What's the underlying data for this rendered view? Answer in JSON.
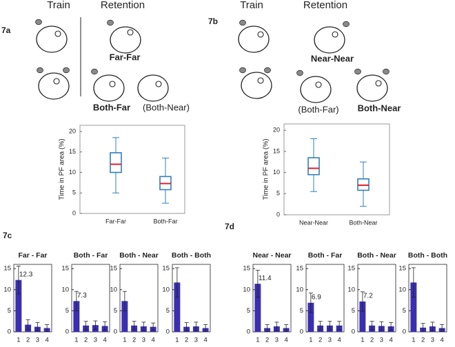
{
  "panels": [
    {
      "label": "7a",
      "train": "Train",
      "retention": "Retention",
      "conditions": [
        "Far-Far",
        "Both-Far",
        "(Both-Near)"
      ]
    },
    {
      "label": "7b",
      "train": "Train",
      "retention": "Retention",
      "conditions": [
        "Near-Near",
        "(Both-Far)",
        "Both-Near"
      ]
    }
  ],
  "bar_panel_labels": [
    "7c",
    "7d"
  ],
  "chart_data": [
    {
      "type": "box",
      "ylabel": "Time in PF area (%)",
      "categories": [
        "Far-Far",
        "Both-Far"
      ],
      "boxes": [
        {
          "whislo": 5,
          "q1": 10,
          "med": 12,
          "q3": 14.8,
          "whishi": 18.5
        },
        {
          "whislo": 2.5,
          "q1": 5.8,
          "med": 7.3,
          "q3": 9,
          "whishi": 13.5
        }
      ],
      "ylim": [
        0,
        21.5
      ],
      "yticks": [
        0,
        5,
        10,
        15,
        20
      ],
      "color": "#2f7dc0",
      "median_color": "#e0202a"
    },
    {
      "type": "box",
      "ylabel": "Time in PF area (%)",
      "categories": [
        "Near-Near",
        "Both-Near"
      ],
      "boxes": [
        {
          "whislo": 5.5,
          "q1": 9.5,
          "med": 11,
          "q3": 13.5,
          "whishi": 18
        },
        {
          "whislo": 2,
          "q1": 5.8,
          "med": 7,
          "q3": 8.5,
          "whishi": 12.5
        }
      ],
      "ylim": [
        0,
        21.5
      ],
      "yticks": [
        0,
        5,
        10,
        15,
        20
      ],
      "color": "#2f7dc0",
      "median_color": "#e0202a"
    },
    {
      "type": "bar",
      "title": "Far - Far",
      "categories": [
        "1",
        "2",
        "3",
        "4"
      ],
      "values": [
        12.3,
        1.7,
        1.2,
        0.9
      ],
      "errors": [
        3.3,
        1.2,
        1.0,
        0.8
      ],
      "value_labels": [
        "12.3",
        null,
        null,
        null
      ],
      "ylim": [
        0,
        16
      ],
      "yticks": [
        0,
        5,
        10,
        15
      ],
      "color": "#3a2fb0"
    },
    {
      "type": "bar",
      "title": "Both - Far",
      "categories": [
        "1",
        "2",
        "3",
        "4"
      ],
      "values": [
        7.3,
        1.5,
        1.6,
        1.4
      ],
      "errors": [
        2.3,
        1.0,
        1.0,
        1.0
      ],
      "value_labels": [
        "7.3",
        null,
        null,
        null
      ],
      "ylim": [
        0,
        16
      ],
      "yticks": [
        0,
        5,
        10,
        15
      ],
      "color": "#3a2fb0"
    },
    {
      "type": "bar",
      "title": "Both - Near",
      "categories": [
        "1",
        "2",
        "3",
        "4"
      ],
      "values": [
        7.3,
        1.5,
        1.3,
        1.2
      ],
      "errors": [
        2.3,
        1.0,
        1.0,
        0.9
      ],
      "value_labels": [
        null,
        null,
        null,
        null
      ],
      "ylim": [
        0,
        16
      ],
      "yticks": [
        0,
        5,
        10,
        15
      ],
      "color": "#3a2fb0"
    },
    {
      "type": "bar",
      "title": "Both - Both",
      "categories": [
        "1",
        "2",
        "3",
        "4"
      ],
      "values": [
        11.7,
        1.2,
        1.3,
        0.9
      ],
      "errors": [
        3.5,
        1.0,
        1.0,
        0.8
      ],
      "value_labels": [
        null,
        null,
        null,
        null
      ],
      "ylim": [
        0,
        16
      ],
      "yticks": [
        0,
        5,
        10,
        15
      ],
      "color": "#3a2fb0"
    },
    {
      "type": "bar",
      "title": "Near - Near",
      "categories": [
        "1",
        "2",
        "3",
        "4"
      ],
      "values": [
        11.4,
        0.9,
        1.3,
        0.9
      ],
      "errors": [
        3.2,
        0.8,
        1.0,
        0.8
      ],
      "value_labels": [
        "11.4",
        null,
        null,
        null
      ],
      "ylim": [
        0,
        16
      ],
      "yticks": [
        0,
        5,
        10,
        15
      ],
      "color": "#3a2fb0"
    },
    {
      "type": "bar",
      "title": "Both - Far",
      "categories": [
        "1",
        "2",
        "3",
        "4"
      ],
      "values": [
        6.9,
        1.5,
        1.5,
        1.5
      ],
      "errors": [
        2.3,
        1.0,
        1.0,
        1.0
      ],
      "value_labels": [
        "6.9",
        null,
        null,
        null
      ],
      "ylim": [
        0,
        16
      ],
      "yticks": [
        0,
        5,
        10,
        15
      ],
      "color": "#3a2fb0"
    },
    {
      "type": "bar",
      "title": "Both - Near",
      "categories": [
        "1",
        "2",
        "3",
        "4"
      ],
      "values": [
        7.2,
        1.5,
        1.4,
        1.3
      ],
      "errors": [
        2.3,
        1.0,
        1.0,
        0.9
      ],
      "value_labels": [
        "7.2",
        null,
        null,
        null
      ],
      "ylim": [
        0,
        16
      ],
      "yticks": [
        0,
        5,
        10,
        15
      ],
      "color": "#3a2fb0"
    },
    {
      "type": "bar",
      "title": "Both - Both",
      "categories": [
        "1",
        "2",
        "3",
        "4"
      ],
      "values": [
        11.7,
        1.0,
        1.3,
        0.9
      ],
      "errors": [
        3.5,
        1.0,
        1.0,
        0.8
      ],
      "value_labels": [
        null,
        null,
        null,
        null
      ],
      "ylim": [
        0,
        16
      ],
      "yticks": [
        0,
        5,
        10,
        15
      ],
      "color": "#3a2fb0"
    }
  ]
}
